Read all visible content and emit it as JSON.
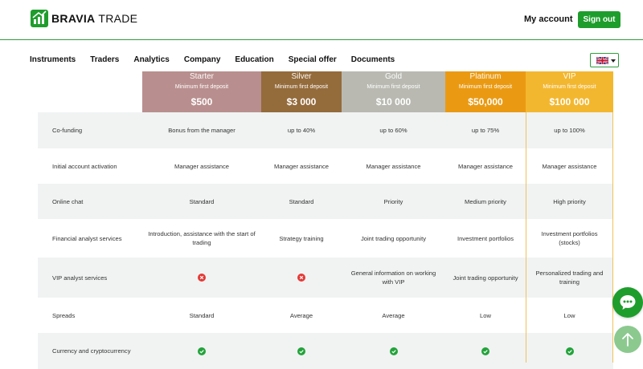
{
  "brand": {
    "name_bold": "BRAVIA",
    "name_rest": " TRADE"
  },
  "header": {
    "my_account": "My account",
    "sign_out": "Sign out"
  },
  "nav": [
    {
      "label": "Instruments"
    },
    {
      "label": "Traders"
    },
    {
      "label": "Analytics"
    },
    {
      "label": "Company"
    },
    {
      "label": "Education"
    },
    {
      "label": "Special offer"
    },
    {
      "label": "Documents"
    }
  ],
  "language": {
    "flag": "uk-flag-icon"
  },
  "plans": [
    {
      "name": "Starter",
      "sub": "Minimum first deposit",
      "price": "$500",
      "color": "#b88f8e"
    },
    {
      "name": "Silver",
      "sub": "Minimum first deposit",
      "price": "$3 000",
      "color": "#946b3b"
    },
    {
      "name": "Gold",
      "sub": "Minimum first deposit",
      "price": "$10 000",
      "color": "#b9b9b2"
    },
    {
      "name": "Platinum",
      "sub": "Minimum first deposit",
      "price": "$50,000",
      "color": "#ea9a12"
    },
    {
      "name": "VIP",
      "sub": "Minimum first deposit",
      "price": "$100 000",
      "color": "#f3b72f"
    }
  ],
  "rows": [
    {
      "label": "Co-funding",
      "values": [
        "Bonus from the manager",
        "up to 40%",
        "up to 60%",
        "up to 75%",
        "up to 100%"
      ]
    },
    {
      "label": "Initial account activation",
      "values": [
        "Manager assistance",
        "Manager assistance",
        "Manager assistance",
        "Manager assistance",
        "Manager assistance"
      ]
    },
    {
      "label": "Online chat",
      "values": [
        "Standard",
        "Standard",
        "Priority",
        "Medium priority",
        "High priority"
      ]
    },
    {
      "label": "Financial analyst services",
      "values": [
        "Introduction, assistance with the start of trading",
        "Strategy training",
        "Joint trading opportunity",
        "Investment portfolios",
        "Investment portfolios (stocks)"
      ]
    },
    {
      "label": "VIP analyst services",
      "values": [
        "[no]",
        "[no]",
        "General information on working with VIP",
        "Joint trading opportunity",
        "Personalized trading and training"
      ]
    },
    {
      "label": "Spreads",
      "values": [
        "Standard",
        "Average",
        "Average",
        "Low",
        "Low"
      ]
    },
    {
      "label": "Currency and cryptocurrency",
      "values": [
        "[yes]",
        "[yes]",
        "[yes]",
        "[yes]",
        "[yes]"
      ]
    }
  ],
  "colors": {
    "accent": "#1e9d2c",
    "no": "#e53935",
    "yes": "#22a33a"
  }
}
